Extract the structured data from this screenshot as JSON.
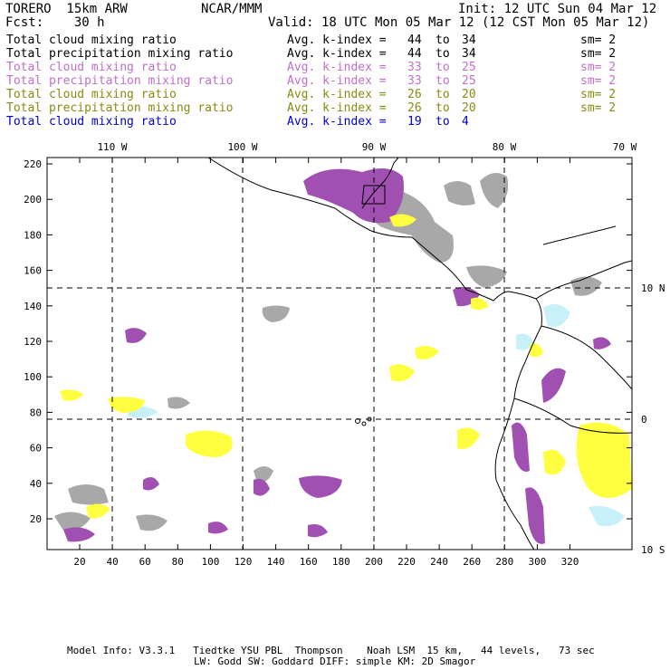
{
  "header": {
    "model": "TORERO  15km ARW",
    "org": "NCAR/MMM",
    "init": "Init: 12 UTC Sun 04 Mar 12",
    "fcst": "Fcst:    30 h",
    "valid": "Valid: 18 UTC Mon 05 Mar 12 (12 CST Mon 05 Mar 12)"
  },
  "legend": [
    {
      "field": "Total cloud mixing ratio",
      "avg": "Avg. k-index =",
      "k1": "44",
      "to": "to",
      "k2": "34",
      "sm": "sm= 2",
      "color": "#000000"
    },
    {
      "field": "Total precipitation mixing ratio",
      "avg": "Avg. k-index =",
      "k1": "44",
      "to": "to",
      "k2": "34",
      "sm": "sm= 2",
      "color": "#000000"
    },
    {
      "field": "Total cloud mixing ratio",
      "avg": "Avg. k-index =",
      "k1": "33",
      "to": "to",
      "k2": "25",
      "sm": "sm= 2",
      "color": "#c070c8"
    },
    {
      "field": "Total precipitation mixing ratio",
      "avg": "Avg. k-index =",
      "k1": "33",
      "to": "to",
      "k2": "25",
      "sm": "sm= 2",
      "color": "#c070c8"
    },
    {
      "field": "Total cloud mixing ratio",
      "avg": "Avg. k-index =",
      "k1": "26",
      "to": "to",
      "k2": "20",
      "sm": "sm= 2",
      "color": "#8a8a10"
    },
    {
      "field": "Total precipitation mixing ratio",
      "avg": "Avg. k-index =",
      "k1": "26",
      "to": "to",
      "k2": "20",
      "sm": "sm= 2",
      "color": "#8a8a10"
    },
    {
      "field": "Total cloud mixing ratio",
      "avg": "Avg. k-index =",
      "k1": "19",
      "to": "to",
      "k2": "4",
      "sm": "",
      "color": "#0000d0"
    }
  ],
  "map": {
    "lon_labels": [
      "110 W",
      "100 W",
      "90 W",
      "80 W",
      "70 W"
    ],
    "lat_labels": [
      "10 N",
      "0",
      "10 S"
    ],
    "y_ticks": [
      "220",
      "200",
      "180",
      "160",
      "140",
      "120",
      "100",
      "80",
      "60",
      "40",
      "20"
    ],
    "x_ticks": [
      "20",
      "40",
      "60",
      "80",
      "100",
      "120",
      "140",
      "160",
      "180",
      "200",
      "220",
      "240",
      "260",
      "280",
      "300",
      "320"
    ],
    "colors": {
      "gray": "#a8a8a8",
      "purple": "#a050b0",
      "yellow": "#ffff40",
      "cyan": "#c8f0f8",
      "grid": "#000000"
    }
  },
  "footer": {
    "line1": "Model Info: V3.3.1   Tiedtke YSU PBL  Thompson    Noah LSM  15 km,   44 levels,   73 sec",
    "line2": "LW: Godd SW: Goddard DIFF: simple KM: 2D Smagor"
  }
}
